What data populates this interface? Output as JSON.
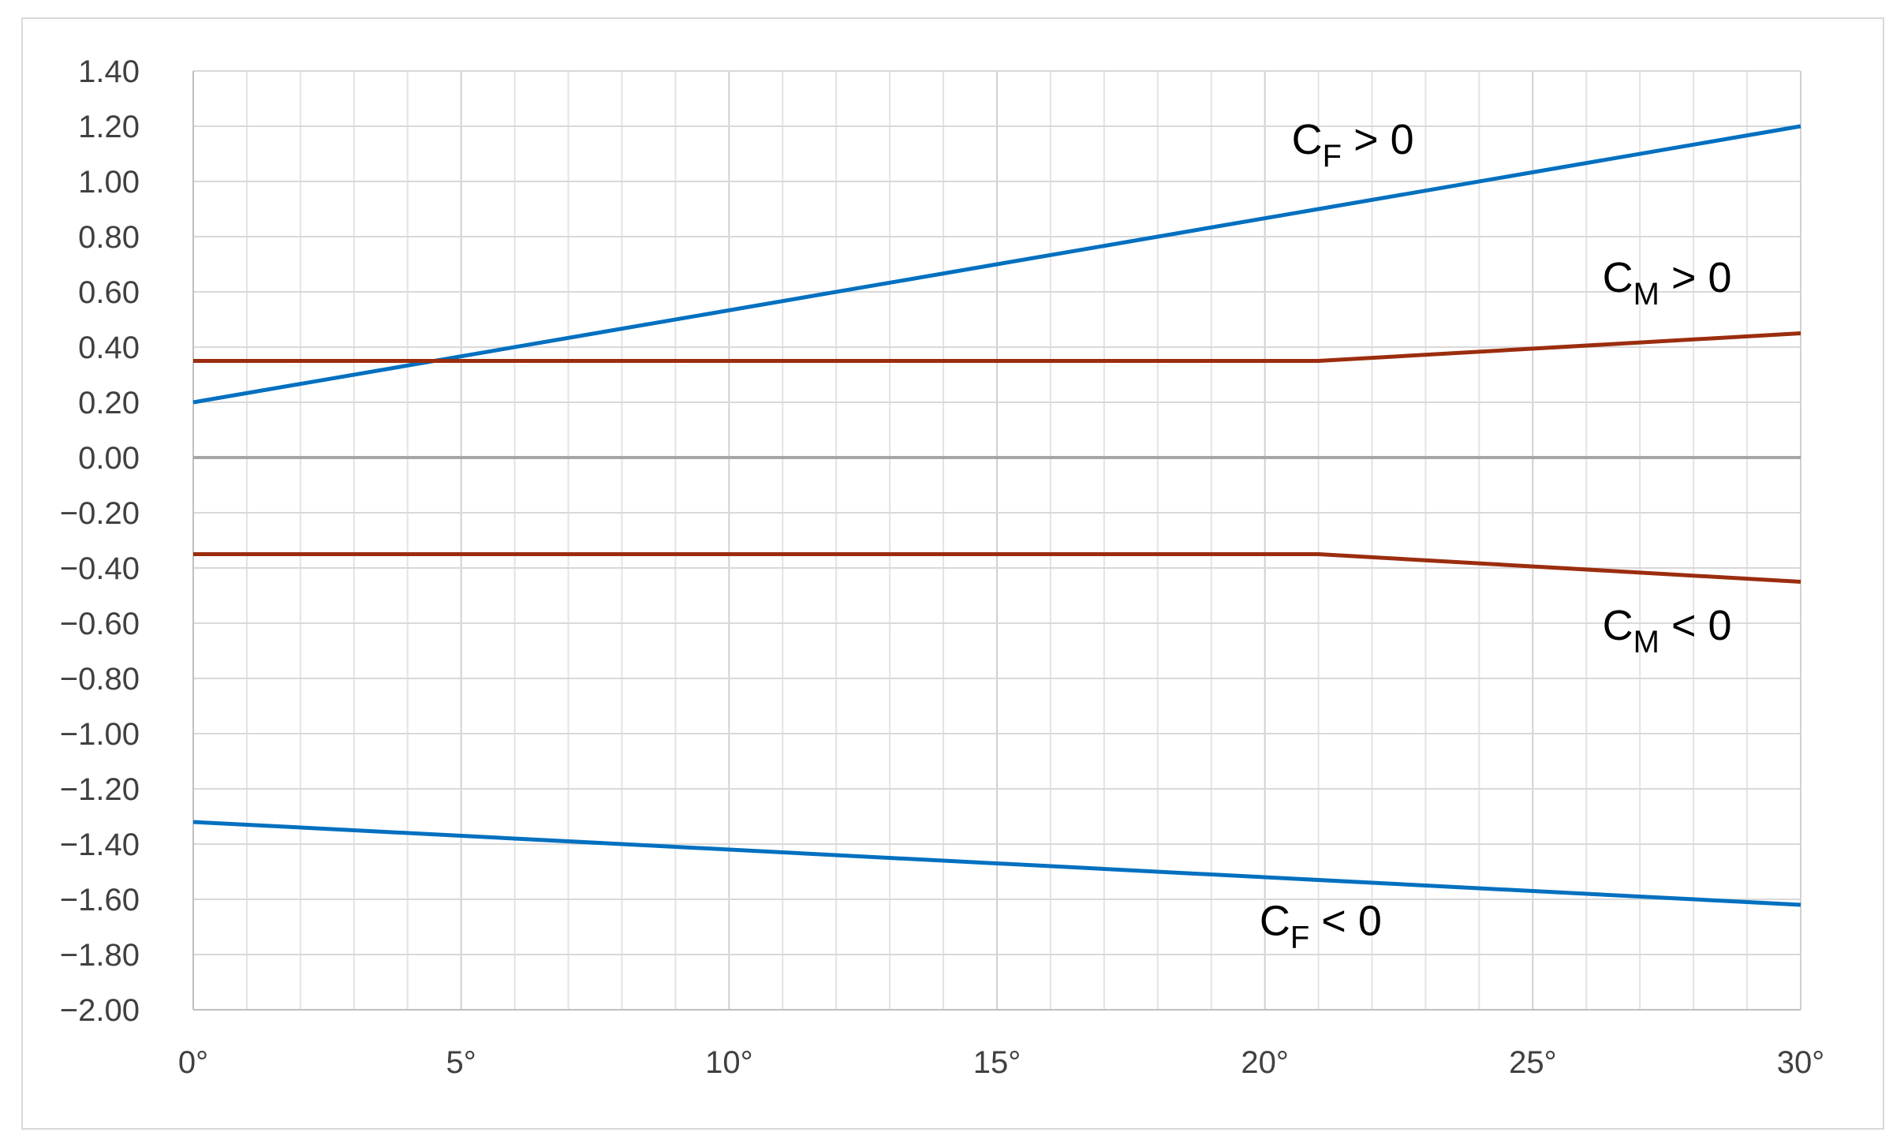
{
  "chart_data": {
    "type": "line",
    "title": "",
    "xlabel": "",
    "ylabel": "",
    "xlim": [
      0,
      30
    ],
    "ylim": [
      -2.0,
      1.4
    ],
    "grid": true,
    "legend": "none",
    "x_ticks": [
      "0°",
      "5°",
      "10°",
      "15°",
      "20°",
      "25°",
      "30°"
    ],
    "y_ticks": [
      "1.40",
      "1.20",
      "1.00",
      "0.80",
      "0.60",
      "0.40",
      "0.20",
      "0.00",
      "−0.20",
      "−0.40",
      "−0.60",
      "−0.80",
      "−1.00",
      "−1.20",
      "−1.40",
      "−1.60",
      "−1.80",
      "−2.00"
    ],
    "series": [
      {
        "color": "#0070c0",
        "points": [
          [
            0,
            0.2
          ],
          [
            30,
            1.2
          ]
        ]
      },
      {
        "color": "#0070c0",
        "points": [
          [
            0,
            -1.32
          ],
          [
            30,
            -1.62
          ]
        ]
      },
      {
        "color": "#9b2d0e",
        "points": [
          [
            0,
            0.35
          ],
          [
            21,
            0.35
          ],
          [
            30,
            0.45
          ]
        ]
      },
      {
        "color": "#9b2d0e",
        "points": [
          [
            0,
            -0.35
          ],
          [
            21,
            -0.35
          ],
          [
            30,
            -0.45
          ]
        ]
      }
    ],
    "annotations": [
      {
        "base": "C",
        "sub": "F",
        "rest": " > 0",
        "x": 20.5,
        "y": 1.1
      },
      {
        "base": "C",
        "sub": "M",
        "rest": " > 0",
        "x": 26.3,
        "y": 0.6
      },
      {
        "base": "C",
        "sub": "M",
        "rest": " < 0",
        "x": 26.3,
        "y": -0.66
      },
      {
        "base": "C",
        "sub": "F",
        "rest": " < 0",
        "x": 19.9,
        "y": -1.73
      }
    ],
    "colors": {
      "zero_line": "#a6a6a6",
      "grid": "#d9d9d9",
      "axis": "#bfbfbf"
    }
  }
}
